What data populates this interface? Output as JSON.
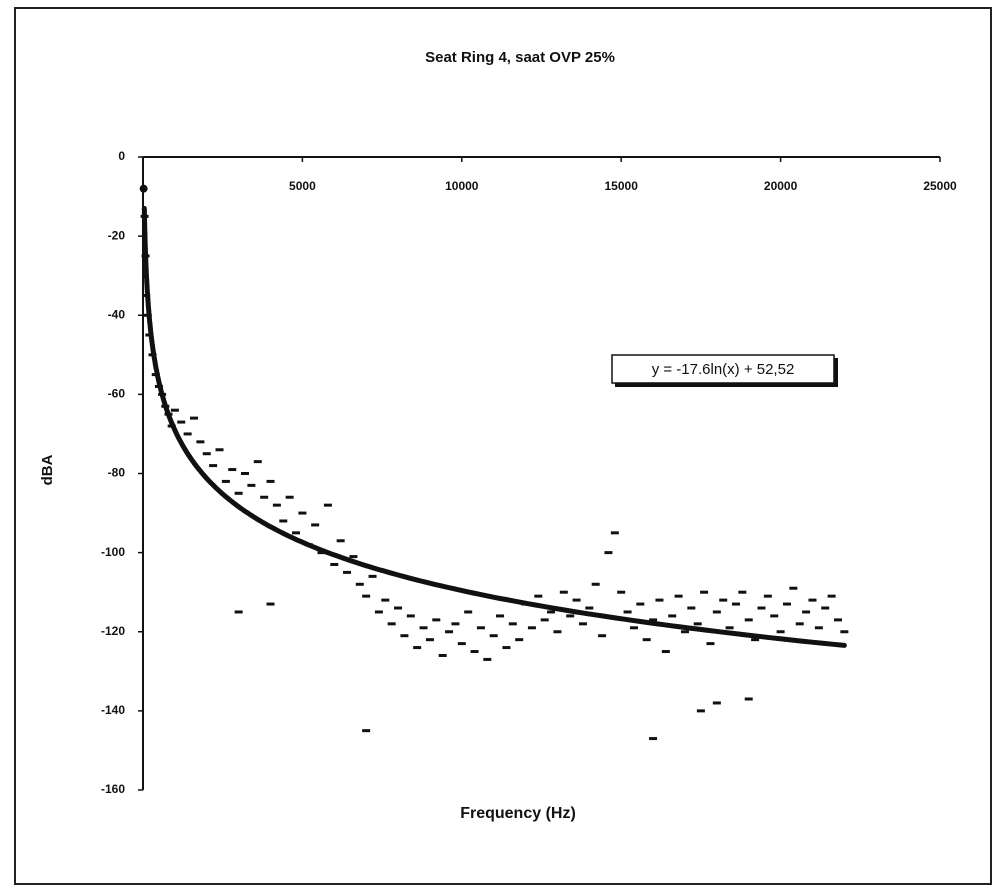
{
  "chart_data": {
    "type": "scatter",
    "title": "Seat Ring 4, saat OVP 25%",
    "x_label": "Frequency (Hz)",
    "y_label": "dBA",
    "xlim": [
      0,
      25000
    ],
    "ylim": [
      -160,
      0
    ],
    "xticks": [
      5000,
      10000,
      15000,
      20000,
      25000
    ],
    "yticks": [
      0,
      -20,
      -40,
      -60,
      -80,
      -100,
      -120,
      -140,
      -160
    ],
    "color": "#111111",
    "trendline": {
      "equation": "y = -17.6ln(x) + 52,52",
      "coefficient": -17.6,
      "intercept": 52.52
    },
    "series": [
      {
        "name": "dBA",
        "x": [
          20,
          50,
          80,
          100,
          150,
          200,
          300,
          400,
          500,
          600,
          700,
          800,
          900,
          1000,
          1200,
          1400,
          1600,
          1800,
          2000,
          2200,
          2400,
          2600,
          2800,
          3000,
          3200,
          3400,
          3600,
          3800,
          4000,
          4200,
          4400,
          4600,
          4800,
          5000,
          5200,
          5400,
          5600,
          5800,
          6000,
          6200,
          6400,
          6600,
          6800,
          7000,
          7200,
          7400,
          7600,
          7800,
          8000,
          8200,
          8400,
          8600,
          8800,
          9000,
          9200,
          9400,
          9600,
          9800,
          10000,
          10200,
          10400,
          10600,
          10800,
          11000,
          11200,
          11400,
          11600,
          11800,
          12000,
          12200,
          12400,
          12600,
          12800,
          13000,
          13200,
          13400,
          13600,
          13800,
          14000,
          14200,
          14400,
          14600,
          14800,
          15000,
          15200,
          15400,
          15600,
          15800,
          16000,
          16200,
          16400,
          16600,
          16800,
          17000,
          17200,
          17400,
          17600,
          17800,
          18000,
          18200,
          18400,
          18600,
          18800,
          19000,
          19200,
          19400,
          19600,
          19800,
          20000,
          20200,
          20400,
          20600,
          20800,
          21000,
          21200,
          21400,
          21600,
          21800,
          22000,
          3000,
          4000,
          7000,
          16000,
          17500,
          18000,
          19000
        ],
        "values": [
          -8,
          -15,
          -25,
          -35,
          -40,
          -45,
          -50,
          -55,
          -58,
          -60,
          -63,
          -65,
          -68,
          -64,
          -67,
          -70,
          -66,
          -72,
          -75,
          -78,
          -74,
          -82,
          -79,
          -85,
          -80,
          -83,
          -77,
          -86,
          -82,
          -88,
          -92,
          -86,
          -95,
          -90,
          -98,
          -93,
          -100,
          -88,
          -103,
          -97,
          -105,
          -101,
          -108,
          -111,
          -106,
          -115,
          -112,
          -118,
          -114,
          -121,
          -116,
          -124,
          -119,
          -122,
          -117,
          -126,
          -120,
          -118,
          -123,
          -115,
          -125,
          -119,
          -127,
          -121,
          -116,
          -124,
          -118,
          -122,
          -113,
          -119,
          -111,
          -117,
          -115,
          -120,
          -110,
          -116,
          -112,
          -118,
          -114,
          -108,
          -121,
          -100,
          -95,
          -110,
          -115,
          -119,
          -113,
          -122,
          -117,
          -112,
          -125,
          -116,
          -111,
          -120,
          -114,
          -118,
          -110,
          -123,
          -115,
          -112,
          -119,
          -113,
          -110,
          -117,
          -122,
          -114,
          -111,
          -116,
          -120,
          -113,
          -109,
          -118,
          -115,
          -112,
          -119,
          -114,
          -111,
          -117,
          -120,
          -115,
          -113,
          -145,
          -147,
          -140,
          -138,
          -137
        ]
      }
    ]
  }
}
